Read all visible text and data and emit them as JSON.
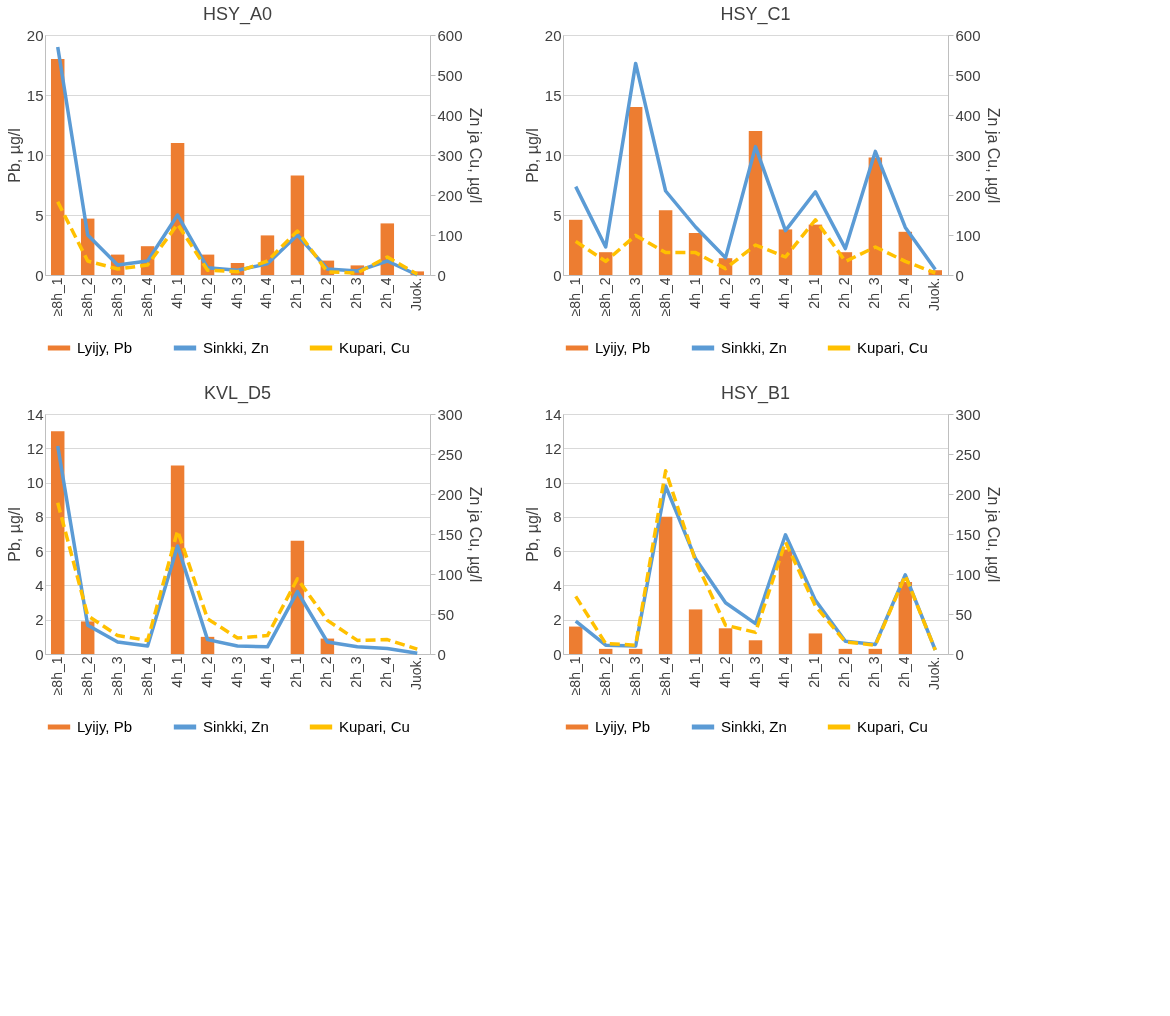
{
  "chart_data": [
    {
      "type": "bar",
      "title": "HSY_A0",
      "ylabel": "Pb, µg/l",
      "y2label": "Zn ja Cu, µg/l",
      "categories": [
        "≥8h_1",
        "≥8h_2",
        "≥8h_3",
        "≥8h_4",
        "4h_1",
        "4h_2",
        "4h_3",
        "4h_4",
        "2h_1",
        "2h_2",
        "2h_3",
        "2h_4",
        "Juok."
      ],
      "series": [
        {
          "name": "Lyijy, Pb",
          "color": "#ed7d31",
          "values": [
            18,
            4.7,
            1.7,
            2.4,
            11,
            1.7,
            1.0,
            3.3,
            8.3,
            1.2,
            0.8,
            4.3,
            0.3
          ]
        },
        {
          "name": "Sinkki, Zn",
          "type": "line",
          "axis": "y2",
          "line_style": "solid",
          "color": "#5b9bd5",
          "values": [
            570,
            100,
            25,
            35,
            150,
            18,
            12,
            28,
            100,
            15,
            10,
            35,
            0
          ]
        },
        {
          "name": "Kupari, Cu",
          "type": "line",
          "axis": "y2",
          "line_style": "dashed",
          "color": "#ffc000",
          "values": [
            183,
            35,
            15,
            25,
            127,
            12,
            8,
            35,
            110,
            8,
            5,
            45,
            2
          ]
        }
      ],
      "ylim": [
        0,
        20
      ],
      "yticks": [
        0,
        5,
        10,
        15,
        20
      ],
      "y2lim": [
        0,
        600
      ],
      "y2ticks": [
        0,
        100,
        200,
        300,
        400,
        500,
        600
      ],
      "grid": "y",
      "legend": "bottom"
    },
    {
      "type": "bar",
      "title": "HSY_C1",
      "ylabel": "Pb, µg/l",
      "y2label": "Zn ja Cu, µg/l",
      "categories": [
        "≥8h_1",
        "≥8h_2",
        "≥8h_3",
        "≥8h_4",
        "4h_1",
        "4h_2",
        "4h_3",
        "4h_4",
        "2h_1",
        "2h_2",
        "2h_3",
        "2h_4",
        "Juok."
      ],
      "series": [
        {
          "name": "Lyijy, Pb",
          "color": "#ed7d31",
          "values": [
            4.6,
            1.9,
            14,
            5.4,
            3.5,
            1.4,
            12,
            3.8,
            4.2,
            1.9,
            9.8,
            3.6,
            0.4
          ]
        },
        {
          "name": "Sinkki, Zn",
          "type": "line",
          "axis": "y2",
          "line_style": "solid",
          "color": "#5b9bd5",
          "values": [
            221,
            70,
            529,
            210,
            120,
            43,
            321,
            111,
            208,
            66,
            309,
            119,
            14
          ]
        },
        {
          "name": "Kupari, Cu",
          "type": "line",
          "axis": "y2",
          "line_style": "dashed",
          "color": "#ffc000",
          "values": [
            84,
            34,
            99,
            56,
            56,
            16,
            75,
            45,
            138,
            34,
            70,
            34,
            5
          ]
        }
      ],
      "ylim": [
        0,
        20
      ],
      "yticks": [
        0,
        5,
        10,
        15,
        20
      ],
      "y2lim": [
        0,
        600
      ],
      "y2ticks": [
        0,
        100,
        200,
        300,
        400,
        500,
        600
      ],
      "grid": "y",
      "legend": "bottom"
    },
    {
      "type": "bar",
      "title": "KVL_D5",
      "ylabel": "Pb, µg/l",
      "y2label": "Zn ja Cu, µg/l",
      "categories": [
        "≥8h_1",
        "≥8h_2",
        "≥8h_3",
        "≥8h_4",
        "4h_1",
        "4h_2",
        "4h_3",
        "4h_4",
        "2h_1",
        "2h_2",
        "2h_3",
        "2h_4",
        "Juok."
      ],
      "series": [
        {
          "name": "Lyijy, Pb",
          "color": "#ed7d31",
          "values": [
            13,
            1.9,
            null,
            null,
            11,
            1.0,
            null,
            null,
            6.6,
            0.9,
            null,
            null,
            null
          ]
        },
        {
          "name": "Sinkki, Zn",
          "type": "line",
          "axis": "y2",
          "line_style": "solid",
          "color": "#5b9bd5",
          "values": [
            260,
            36,
            15,
            10,
            135,
            18,
            10,
            9,
            78,
            15,
            9,
            7,
            1
          ]
        },
        {
          "name": "Kupari, Cu",
          "type": "line",
          "axis": "y2",
          "line_style": "dashed",
          "color": "#ffc000",
          "values": [
            189,
            48,
            23,
            17,
            154,
            44,
            20,
            23,
            94,
            42,
            17,
            18,
            6
          ]
        }
      ],
      "ylim": [
        0,
        14
      ],
      "yticks": [
        0,
        2,
        4,
        6,
        8,
        10,
        12,
        14
      ],
      "y2lim": [
        0,
        300
      ],
      "y2ticks": [
        0,
        50,
        100,
        150,
        200,
        250,
        300
      ],
      "grid": "y",
      "legend": "bottom"
    },
    {
      "type": "bar",
      "title": "HSY_B1",
      "ylabel": "Pb, µg/l",
      "y2label": "Zn ja Cu, µg/l",
      "categories": [
        "≥8h_1",
        "≥8h_2",
        "≥8h_3",
        "≥8h_4",
        "4h_1",
        "4h_2",
        "4h_3",
        "4h_4",
        "2h_1",
        "2h_2",
        "2h_3",
        "2h_4",
        "Juok."
      ],
      "series": [
        {
          "name": "Lyijy, Pb",
          "color": "#ed7d31",
          "values": [
            1.6,
            0.3,
            0.3,
            8,
            2.6,
            1.5,
            0.8,
            6.1,
            1.2,
            0.3,
            0.3,
            4.2,
            null
          ]
        },
        {
          "name": "Sinkki, Zn",
          "type": "line",
          "axis": "y2",
          "line_style": "solid",
          "color": "#5b9bd5",
          "values": [
            41,
            11,
            10,
            210,
            119,
            64,
            38,
            149,
            67,
            16,
            12,
            99,
            5
          ]
        },
        {
          "name": "Kupari, Cu",
          "type": "line",
          "axis": "y2",
          "line_style": "dashed",
          "color": "#ffc000",
          "values": [
            72,
            13,
            11,
            229,
            116,
            36,
            27,
            140,
            60,
            15,
            11,
            98,
            5
          ]
        }
      ],
      "ylim": [
        0,
        14
      ],
      "yticks": [
        0,
        2,
        4,
        6,
        8,
        10,
        12,
        14
      ],
      "y2lim": [
        0,
        300
      ],
      "y2ticks": [
        0,
        50,
        100,
        150,
        200,
        250,
        300
      ],
      "grid": "y",
      "legend": "bottom"
    }
  ]
}
